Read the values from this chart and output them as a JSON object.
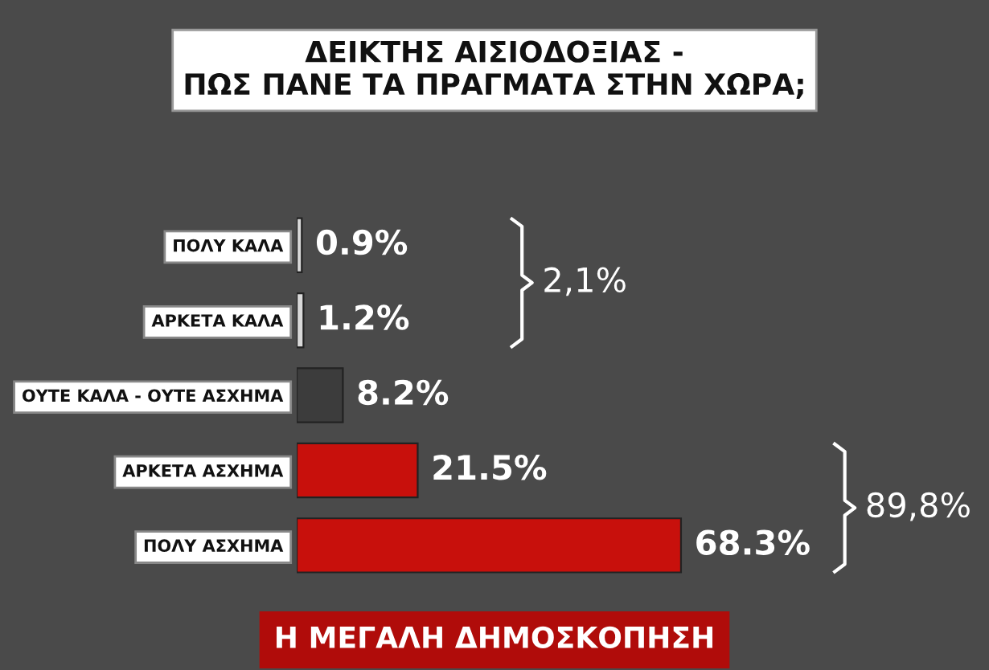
{
  "chart_data": {
    "type": "bar",
    "orientation": "horizontal",
    "title": "ΔΕΙΚΤΗΣ ΑΙΣΙΟΔΟΞΙΑΣ -\nΠΩΣ ΠΑΝΕ ΤΑ ΠΡΑΓΜΑΤΑ ΣΤΗΝ ΧΩΡΑ;",
    "categories": [
      "ΠΟΛΥ ΚΑΛΑ",
      "ΑΡΚΕΤΑ ΚΑΛΑ",
      "ΟΥΤΕ ΚΑΛΑ - ΟΥΤΕ ΑΣΧΗΜΑ",
      "ΑΡΚΕΤΑ ΑΣΧΗΜΑ",
      "ΠΟΛΥ ΑΣΧΗΜΑ"
    ],
    "values": [
      0.9,
      1.2,
      8.2,
      21.5,
      68.3
    ],
    "colors": [
      "#d8d8d8",
      "#d8d8d8",
      "#3c3c3c",
      "#c8100c",
      "#c8100c"
    ],
    "value_labels": [
      "0.9%",
      "1.2%",
      "8.2%",
      "21.5%",
      "68.3%"
    ],
    "annotations": [
      "2,1%",
      "89,8%",
      "Η ΜΕΓΑΛΗ ΔΗΜΟΣΚΟΠΗΣΗ"
    ]
  }
}
